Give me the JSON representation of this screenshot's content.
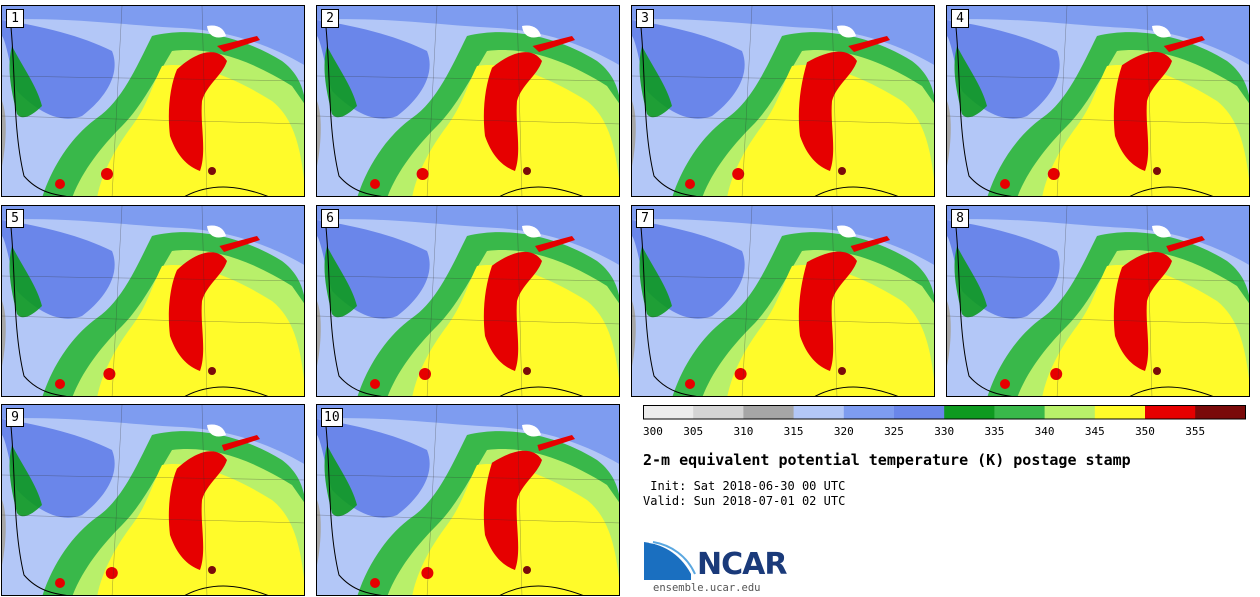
{
  "panels": [
    {
      "label": "1"
    },
    {
      "label": "2"
    },
    {
      "label": "3"
    },
    {
      "label": "4"
    },
    {
      "label": "5"
    },
    {
      "label": "6"
    },
    {
      "label": "7"
    },
    {
      "label": "8"
    },
    {
      "label": "9"
    },
    {
      "label": "10"
    }
  ],
  "colorbar": {
    "ticks": [
      "300",
      "305",
      "310",
      "315",
      "320",
      "325",
      "330",
      "335",
      "340",
      "345",
      "350",
      "355"
    ],
    "colors": [
      "#ececec",
      "#d4d4d4",
      "#a6a6a6",
      "#b3c7f7",
      "#7e9cf0",
      "#6a86ea",
      "#0e9a20",
      "#39b84a",
      "#b8f06a",
      "#fffb2a",
      "#e60000",
      "#7a0a0a"
    ]
  },
  "title": "2-m equivalent potential temperature (K) postage stamp",
  "init": " Init: Sat 2018-06-30 00 UTC",
  "valid": "Valid: Sun 2018-07-01 02 UTC",
  "logo": {
    "text": "NCAR",
    "url": "ensemble.ucar.edu"
  }
}
